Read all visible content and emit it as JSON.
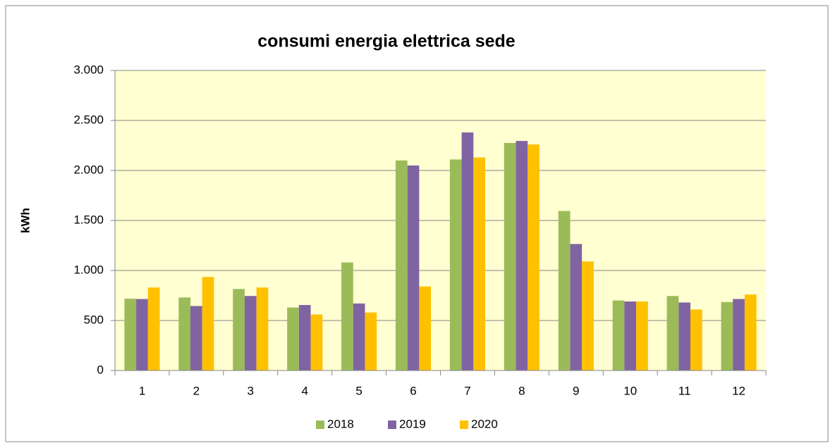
{
  "chart_data": {
    "type": "bar",
    "title": "consumi energia elettrica sede",
    "ylabel": "kWh",
    "categories": [
      "1",
      "2",
      "3",
      "4",
      "5",
      "6",
      "7",
      "8",
      "9",
      "10",
      "11",
      "12"
    ],
    "series": [
      {
        "name": "2018",
        "color": "#9bbb59",
        "values": [
          718,
          730,
          815,
          630,
          1080,
          2100,
          2110,
          2275,
          1595,
          700,
          745,
          685
        ]
      },
      {
        "name": "2019",
        "color": "#8064a2",
        "values": [
          715,
          645,
          745,
          655,
          670,
          2050,
          2380,
          2295,
          1265,
          690,
          680,
          715
        ]
      },
      {
        "name": "2020",
        "color": "#ffc000",
        "values": [
          830,
          935,
          830,
          560,
          580,
          840,
          2130,
          2260,
          1090,
          690,
          610,
          760
        ]
      }
    ],
    "ylim": [
      0,
      3000
    ],
    "yticks": [
      0,
      500,
      {
        "value": 1000,
        "label": "1.000"
      },
      {
        "value": 1500,
        "label": "1.500"
      },
      {
        "value": 2000,
        "label": "2.000"
      },
      {
        "value": 2500,
        "label": "2.500"
      },
      {
        "value": 3000,
        "label": "3.000"
      }
    ],
    "grid": true,
    "legend": "bottom"
  }
}
